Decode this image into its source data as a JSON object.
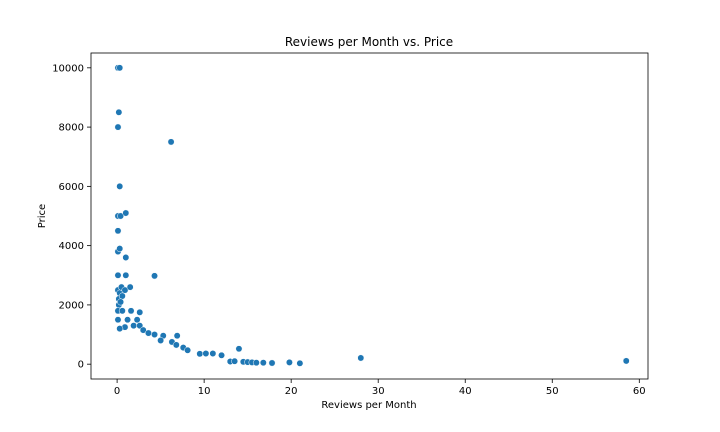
{
  "chart_data": {
    "type": "scatter",
    "title": "Reviews per Month vs. Price",
    "xlabel": "Reviews per Month",
    "ylabel": "Price",
    "xlim": [
      -3,
      61
    ],
    "ylim": [
      -500,
      10500
    ],
    "xticks": [
      0,
      10,
      20,
      30,
      40,
      50,
      60
    ],
    "yticks": [
      0,
      2000,
      4000,
      6000,
      8000,
      10000
    ],
    "grid": false,
    "legend": "none",
    "marker_color": "#1f77b4",
    "series": [
      {
        "points": [
          [
            0.1,
            10000
          ],
          [
            0.3,
            10000
          ],
          [
            0.2,
            8500
          ],
          [
            0.1,
            8000
          ],
          [
            6.2,
            7500
          ],
          [
            0.3,
            6000
          ],
          [
            0.1,
            5000
          ],
          [
            0.4,
            5000
          ],
          [
            1.0,
            5100
          ],
          [
            0.1,
            4500
          ],
          [
            0.1,
            3800
          ],
          [
            0.3,
            3900
          ],
          [
            0.1,
            3000
          ],
          [
            1.0,
            3000
          ],
          [
            4.3,
            2980
          ],
          [
            1.0,
            3600
          ],
          [
            0.1,
            2500
          ],
          [
            0.3,
            2400
          ],
          [
            0.5,
            2600
          ],
          [
            0.9,
            2500
          ],
          [
            1.5,
            2600
          ],
          [
            0.2,
            2200
          ],
          [
            0.6,
            2300
          ],
          [
            0.2,
            2000
          ],
          [
            0.4,
            2100
          ],
          [
            0.1,
            1800
          ],
          [
            0.6,
            1800
          ],
          [
            1.6,
            1800
          ],
          [
            2.6,
            1750
          ],
          [
            0.1,
            1500
          ],
          [
            1.2,
            1500
          ],
          [
            2.3,
            1500
          ],
          [
            0.9,
            1250
          ],
          [
            1.9,
            1300
          ],
          [
            2.6,
            1300
          ],
          [
            0.3,
            1200
          ],
          [
            3.0,
            1150
          ],
          [
            3.6,
            1050
          ],
          [
            4.3,
            1000
          ],
          [
            5.3,
            960
          ],
          [
            6.9,
            960
          ],
          [
            5.0,
            800
          ],
          [
            6.3,
            750
          ],
          [
            6.8,
            650
          ],
          [
            7.6,
            560
          ],
          [
            8.1,
            470
          ],
          [
            9.5,
            350
          ],
          [
            10.2,
            360
          ],
          [
            11.0,
            360
          ],
          [
            12.0,
            300
          ],
          [
            14.0,
            520
          ],
          [
            13.0,
            90
          ],
          [
            13.5,
            100
          ],
          [
            14.5,
            80
          ],
          [
            15.0,
            70
          ],
          [
            15.5,
            60
          ],
          [
            16.0,
            50
          ],
          [
            16.8,
            50
          ],
          [
            17.8,
            40
          ],
          [
            19.8,
            60
          ],
          [
            21.0,
            30
          ],
          [
            28.0,
            210
          ],
          [
            58.5,
            110
          ]
        ]
      }
    ]
  }
}
